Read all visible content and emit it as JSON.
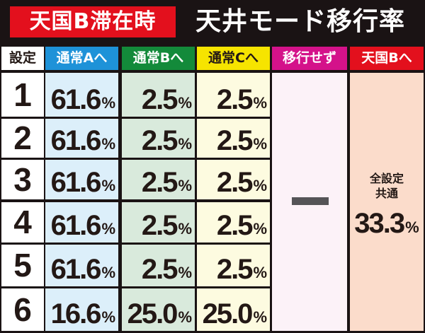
{
  "header": {
    "badge": "天国B滞在時",
    "title": "天井モード移行率"
  },
  "table": {
    "columns": [
      {
        "label": "設定",
        "color": "#ffffff",
        "text_color": "#231815"
      },
      {
        "label": "通常Aへ",
        "color": "#1e92d8",
        "text_color": "#ffffff"
      },
      {
        "label": "通常Bへ",
        "color": "#138a3a",
        "text_color": "#ffffff"
      },
      {
        "label": "通常Cへ",
        "color": "#f6e400",
        "text_color": "#231815"
      },
      {
        "label": "移行せず",
        "color": "#d4128a",
        "text_color": "#ffffff"
      },
      {
        "label": "天国Bへ",
        "color": "#e3101d",
        "text_color": "#ffffff"
      }
    ],
    "rows": [
      {
        "setting": "1",
        "a": "61.6",
        "b": "2.5",
        "c": "2.5"
      },
      {
        "setting": "2",
        "a": "61.6",
        "b": "2.5",
        "c": "2.5"
      },
      {
        "setting": "3",
        "a": "61.6",
        "b": "2.5",
        "c": "2.5"
      },
      {
        "setting": "4",
        "a": "61.6",
        "b": "2.5",
        "c": "2.5"
      },
      {
        "setting": "5",
        "a": "61.6",
        "b": "2.5",
        "c": "2.5"
      },
      {
        "setting": "6",
        "a": "16.6",
        "b": "25.0",
        "c": "25.0"
      }
    ],
    "percent_sign": "%",
    "no_transition": "—",
    "tengoku_b": {
      "label_line1": "全設定",
      "label_line2": "共通",
      "value": "33.3"
    },
    "cell_colors": {
      "setting": "#ffffff",
      "a": "#dceffa",
      "b": "#d9eadc",
      "c": "#fdfbe0",
      "none": "#fcf2f8",
      "tengoku": "#fbdccb"
    }
  }
}
